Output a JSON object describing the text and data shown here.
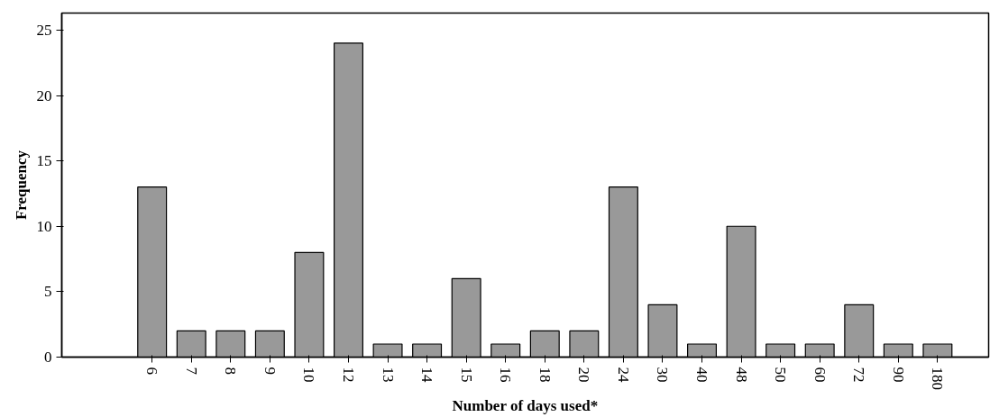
{
  "chart_data": {
    "type": "bar",
    "xlabel": "Number of days used*",
    "ylabel": "Frequency",
    "categories": [
      "6",
      "7",
      "8",
      "9",
      "10",
      "12",
      "13",
      "14",
      "15",
      "16",
      "18",
      "20",
      "24",
      "30",
      "40",
      "48",
      "50",
      "60",
      "72",
      "90",
      "180"
    ],
    "values": [
      13,
      2,
      2,
      2,
      8,
      24,
      1,
      1,
      6,
      1,
      2,
      2,
      13,
      4,
      1,
      10,
      1,
      1,
      4,
      1,
      1
    ],
    "color": "#999999",
    "ylim": [
      0,
      26.3
    ],
    "yticks": [
      0,
      5,
      10,
      15,
      20,
      25
    ],
    "grid": false
  }
}
